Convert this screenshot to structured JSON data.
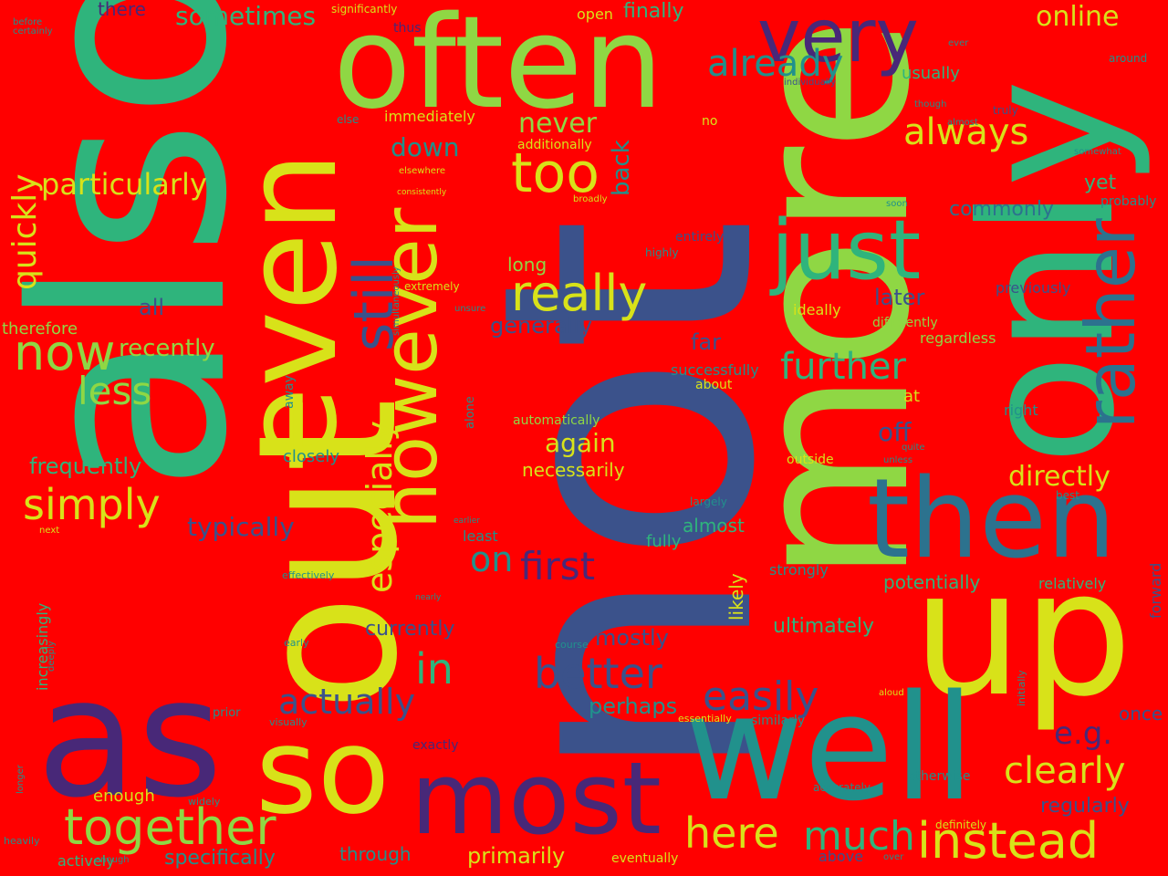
{
  "background": "#ff0000",
  "palette": {
    "yellow": "#d8e219",
    "lime": "#8fd744",
    "green": "#2fb47c",
    "teal": "#21918c",
    "blue": "#2c728e",
    "indigo": "#3b528b",
    "purple": "#482878"
  },
  "words": [
    "not",
    "also",
    "more",
    "out",
    "even",
    "only",
    "often",
    "as",
    "up",
    "well",
    "so",
    "then",
    "very",
    "most",
    "however",
    "just",
    "rather",
    "still",
    "too",
    "really",
    "now",
    "together",
    "instead",
    "here",
    "simply",
    "much",
    "better",
    "especially",
    "always",
    "already",
    "actually",
    "easily",
    "clearly",
    "further",
    "less",
    "first",
    "online",
    "in",
    "quickly",
    "particularly",
    "sometimes",
    "directly",
    "on",
    "never",
    "down",
    "back",
    "recently",
    "generally",
    "later",
    "again",
    "perhaps",
    "frequently",
    "typically",
    "ultimately",
    "primarily",
    "mostly",
    "specifically",
    "e.g.",
    "far",
    "finally",
    "commonly",
    "regularly",
    "yet",
    "currently",
    "all",
    "off",
    "potentially",
    "almost",
    "necessarily",
    "closely",
    "therefore",
    "through",
    "likely",
    "long",
    "usually",
    "fully",
    "once",
    "increasingly",
    "previously",
    "regardless",
    "enough",
    "forward",
    "relatively",
    "at",
    "right",
    "ideally",
    "exactly",
    "least",
    "actively",
    "differently",
    "strongly",
    "above",
    "automatically",
    "successfully",
    "eventually",
    "about",
    "outside",
    "immediately",
    "additionally",
    "entirely",
    "there",
    "significantly",
    "open",
    "thus",
    "around",
    "ever",
    "certainly",
    "before",
    "truly",
    "else",
    "no",
    "individually",
    "somewhat",
    "elsewhere",
    "broadly",
    "consistently",
    "probably",
    "highly",
    "soon",
    "extremely",
    "simultaneously",
    "away",
    "alone",
    "largely",
    "next",
    "quite",
    "best",
    "earlier",
    "effectively",
    "nearly",
    "early",
    "deeply",
    "course",
    "aloud",
    "essentially",
    "similarly",
    "initially",
    "accurately",
    "otherwise",
    "definitely",
    "widely",
    "prior",
    "visually",
    "longer",
    "heavily",
    "over",
    "enough",
    "though",
    "almost",
    "unless",
    "unsure"
  ]
}
